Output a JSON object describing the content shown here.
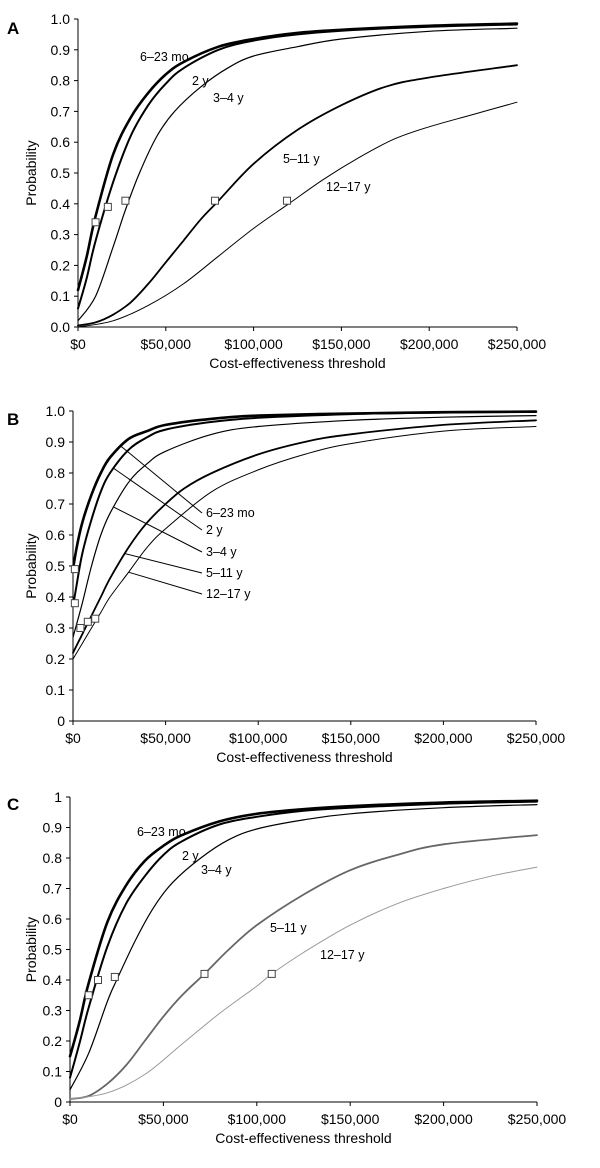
{
  "chart_data": [
    {
      "type": "line",
      "panel_label": "A",
      "xlabel": "Cost-effectiveness threshold",
      "ylabel": "Probability",
      "xlim": [
        0,
        250000
      ],
      "ylim": [
        0,
        1
      ],
      "x_ticks": [
        "$0",
        "$50,000",
        "$100,000",
        "$150,000",
        "$200,000",
        "$250,000"
      ],
      "y_ticks": [
        "0.0",
        "0.1",
        "0.2",
        "0.3",
        "0.4",
        "0.5",
        "0.6",
        "0.7",
        "0.8",
        "0.9",
        "1.0"
      ],
      "grid": false,
      "series": [
        {
          "name": "6–23 mo",
          "color": "#000000",
          "x": [
            0,
            5000,
            10000,
            20000,
            30000,
            40000,
            50000,
            60000,
            80000,
            100000,
            125000,
            150000,
            200000,
            250000
          ],
          "values": [
            0.12,
            0.23,
            0.36,
            0.56,
            0.68,
            0.76,
            0.82,
            0.86,
            0.91,
            0.935,
            0.955,
            0.965,
            0.978,
            0.985
          ]
        },
        {
          "name": "2 y",
          "color": "#000000",
          "x": [
            0,
            5000,
            10000,
            20000,
            30000,
            40000,
            50000,
            60000,
            80000,
            100000,
            125000,
            150000,
            200000,
            250000
          ],
          "values": [
            0.06,
            0.16,
            0.28,
            0.47,
            0.62,
            0.72,
            0.79,
            0.84,
            0.9,
            0.93,
            0.95,
            0.962,
            0.975,
            0.982
          ]
        },
        {
          "name": "3–4 y",
          "color": "#000000",
          "x": [
            0,
            10000,
            20000,
            27000,
            35000,
            45000,
            55000,
            70000,
            85000,
            100000,
            125000,
            150000,
            200000,
            250000
          ],
          "values": [
            0.02,
            0.1,
            0.26,
            0.38,
            0.5,
            0.62,
            0.7,
            0.78,
            0.84,
            0.88,
            0.91,
            0.935,
            0.96,
            0.97
          ]
        },
        {
          "name": "5–11 y",
          "color": "#000000",
          "x": [
            0,
            10000,
            20000,
            30000,
            40000,
            50000,
            60000,
            70000,
            80000,
            100000,
            125000,
            150000,
            175000,
            200000,
            250000
          ],
          "values": [
            0.005,
            0.015,
            0.04,
            0.08,
            0.14,
            0.21,
            0.28,
            0.35,
            0.41,
            0.53,
            0.64,
            0.72,
            0.78,
            0.81,
            0.85
          ]
        },
        {
          "name": "12–17 y",
          "color": "#000000",
          "x": [
            0,
            20000,
            40000,
            60000,
            80000,
            100000,
            120000,
            140000,
            160000,
            180000,
            200000,
            225000,
            250000
          ],
          "values": [
            0.0,
            0.02,
            0.07,
            0.14,
            0.23,
            0.32,
            0.4,
            0.48,
            0.55,
            0.61,
            0.65,
            0.69,
            0.73
          ]
        }
      ],
      "markers": [
        {
          "x": 10000,
          "y": 0.34
        },
        {
          "x": 17000,
          "y": 0.39
        },
        {
          "x": 27000,
          "y": 0.41
        },
        {
          "x": 78000,
          "y": 0.41
        },
        {
          "x": 119000,
          "y": 0.41
        }
      ]
    },
    {
      "type": "line",
      "panel_label": "B",
      "xlabel": "Cost-effectiveness threshold",
      "ylabel": "Probability",
      "xlim": [
        0,
        250000
      ],
      "ylim": [
        0,
        1
      ],
      "x_ticks": [
        "$0",
        "$50,000",
        "$100,000",
        "$150,000",
        "$200,000",
        "$250,000"
      ],
      "y_ticks": [
        "0",
        "0.1",
        "0.2",
        "0.3",
        "0.4",
        "0.5",
        "0.6",
        "0.7",
        "0.8",
        "0.9",
        "1.0"
      ],
      "grid": false,
      "series": [
        {
          "name": "6–23 mo",
          "color": "#000000",
          "x": [
            0,
            2000,
            5000,
            10000,
            15000,
            20000,
            30000,
            40000,
            50000,
            75000,
            100000,
            150000,
            200000,
            250000
          ],
          "values": [
            0.49,
            0.56,
            0.64,
            0.73,
            0.8,
            0.85,
            0.91,
            0.935,
            0.955,
            0.975,
            0.985,
            0.992,
            0.996,
            0.998
          ]
        },
        {
          "name": "2 y",
          "color": "#000000",
          "x": [
            0,
            2000,
            5000,
            10000,
            15000,
            20000,
            30000,
            40000,
            50000,
            75000,
            100000,
            150000,
            200000,
            250000
          ],
          "values": [
            0.37,
            0.44,
            0.54,
            0.65,
            0.74,
            0.8,
            0.875,
            0.915,
            0.94,
            0.965,
            0.978,
            0.99,
            0.995,
            0.997
          ]
        },
        {
          "name": "3–4 y",
          "color": "#000000",
          "x": [
            0,
            5000,
            10000,
            15000,
            20000,
            30000,
            40000,
            50000,
            75000,
            100000,
            150000,
            200000,
            250000
          ],
          "values": [
            0.27,
            0.38,
            0.5,
            0.6,
            0.67,
            0.77,
            0.83,
            0.87,
            0.925,
            0.95,
            0.97,
            0.98,
            0.985
          ]
        },
        {
          "name": "5–11 y",
          "color": "#000000",
          "x": [
            0,
            5000,
            10000,
            15000,
            20000,
            30000,
            40000,
            50000,
            60000,
            75000,
            100000,
            125000,
            150000,
            200000,
            250000
          ],
          "values": [
            0.22,
            0.28,
            0.34,
            0.4,
            0.46,
            0.56,
            0.64,
            0.7,
            0.75,
            0.8,
            0.86,
            0.9,
            0.925,
            0.955,
            0.97
          ]
        },
        {
          "name": "12–17 y",
          "color": "#000000",
          "x": [
            0,
            5000,
            10000,
            15000,
            20000,
            30000,
            40000,
            50000,
            75000,
            100000,
            125000,
            150000,
            200000,
            250000
          ],
          "values": [
            0.2,
            0.25,
            0.3,
            0.35,
            0.4,
            0.48,
            0.56,
            0.62,
            0.74,
            0.81,
            0.86,
            0.895,
            0.935,
            0.95
          ]
        }
      ],
      "markers": [
        {
          "x": 1000,
          "y": 0.49
        },
        {
          "x": 1000,
          "y": 0.38
        },
        {
          "x": 4000,
          "y": 0.3
        },
        {
          "x": 8000,
          "y": 0.32
        },
        {
          "x": 12000,
          "y": 0.33
        }
      ]
    },
    {
      "type": "line",
      "panel_label": "C",
      "xlabel": "Cost-effectiveness threshold",
      "ylabel": "Probability",
      "xlim": [
        0,
        250000
      ],
      "ylim": [
        0,
        1
      ],
      "x_ticks": [
        "$0",
        "$50,000",
        "$100,000",
        "$150,000",
        "$200,000",
        "$250,000"
      ],
      "y_ticks": [
        "0",
        "0.1",
        "0.2",
        "0.3",
        "0.4",
        "0.5",
        "0.6",
        "0.7",
        "0.8",
        "0.9",
        "1"
      ],
      "grid": false,
      "series": [
        {
          "name": "6–23 mo",
          "color": "#000000",
          "x": [
            0,
            5000,
            10000,
            20000,
            30000,
            40000,
            50000,
            60000,
            80000,
            100000,
            125000,
            150000,
            200000,
            250000
          ],
          "values": [
            0.15,
            0.26,
            0.39,
            0.59,
            0.71,
            0.79,
            0.84,
            0.875,
            0.92,
            0.945,
            0.96,
            0.97,
            0.982,
            0.988
          ]
        },
        {
          "name": "2 y",
          "color": "#000000",
          "x": [
            0,
            5000,
            10000,
            20000,
            30000,
            40000,
            50000,
            60000,
            80000,
            100000,
            125000,
            150000,
            200000,
            250000
          ],
          "values": [
            0.08,
            0.19,
            0.31,
            0.51,
            0.65,
            0.74,
            0.81,
            0.855,
            0.91,
            0.935,
            0.955,
            0.965,
            0.978,
            0.985
          ]
        },
        {
          "name": "3–4 y",
          "color": "#000000",
          "x": [
            0,
            10000,
            20000,
            25000,
            35000,
            45000,
            55000,
            70000,
            85000,
            100000,
            125000,
            150000,
            200000,
            250000
          ],
          "values": [
            0.04,
            0.16,
            0.33,
            0.4,
            0.53,
            0.64,
            0.72,
            0.8,
            0.86,
            0.895,
            0.925,
            0.945,
            0.965,
            0.975
          ]
        },
        {
          "name": "5–11 y",
          "color": "#666666",
          "x": [
            0,
            10000,
            20000,
            30000,
            40000,
            50000,
            60000,
            72000,
            85000,
            100000,
            125000,
            150000,
            175000,
            200000,
            250000
          ],
          "values": [
            0.01,
            0.02,
            0.06,
            0.12,
            0.2,
            0.28,
            0.35,
            0.42,
            0.5,
            0.58,
            0.68,
            0.76,
            0.81,
            0.845,
            0.875
          ]
        },
        {
          "name": "12–17 y",
          "color": "#999999",
          "x": [
            0,
            20000,
            40000,
            60000,
            80000,
            100000,
            108000,
            125000,
            150000,
            175000,
            200000,
            225000,
            250000
          ],
          "values": [
            0.01,
            0.03,
            0.09,
            0.19,
            0.29,
            0.38,
            0.42,
            0.49,
            0.58,
            0.65,
            0.7,
            0.74,
            0.77
          ]
        }
      ],
      "markers": [
        {
          "x": 10000,
          "y": 0.35
        },
        {
          "x": 15000,
          "y": 0.4
        },
        {
          "x": 24000,
          "y": 0.41
        },
        {
          "x": 72000,
          "y": 0.42
        },
        {
          "x": 108000,
          "y": 0.42
        }
      ]
    }
  ]
}
